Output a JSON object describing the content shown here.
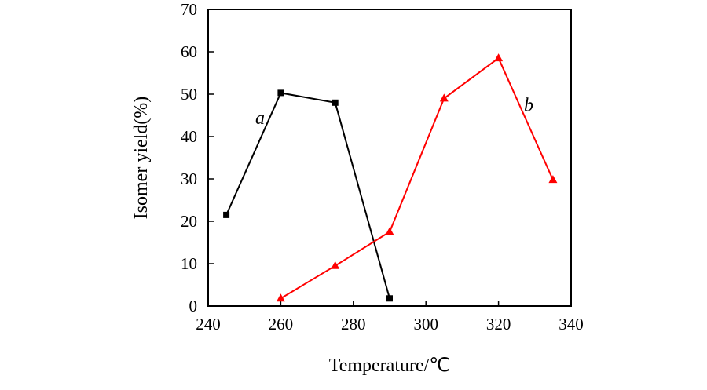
{
  "chart_data": {
    "type": "line",
    "title": "",
    "xlabel": "Temperature/℃",
    "ylabel": "Isomer yield(%)",
    "xlim": [
      240,
      340
    ],
    "ylim": [
      0,
      70
    ],
    "xticks": [
      240,
      260,
      280,
      300,
      320,
      340
    ],
    "yticks": [
      0,
      10,
      20,
      30,
      40,
      50,
      60,
      70
    ],
    "grid": false,
    "series": [
      {
        "name": "a",
        "color": "#000000",
        "marker": "square",
        "x": [
          245,
          260,
          275,
          290
        ],
        "y": [
          21.5,
          50.3,
          48.0,
          1.8
        ]
      },
      {
        "name": "b",
        "color": "#ff0000",
        "marker": "triangle",
        "x": [
          260,
          275,
          290,
          305,
          320,
          335
        ],
        "y": [
          1.8,
          9.5,
          17.5,
          49.0,
          58.5,
          29.8
        ]
      }
    ],
    "annotations": [
      {
        "text": "a",
        "series": "a",
        "x": 253,
        "y": 43
      },
      {
        "text": "b",
        "series": "b",
        "x": 327,
        "y": 46
      }
    ]
  }
}
